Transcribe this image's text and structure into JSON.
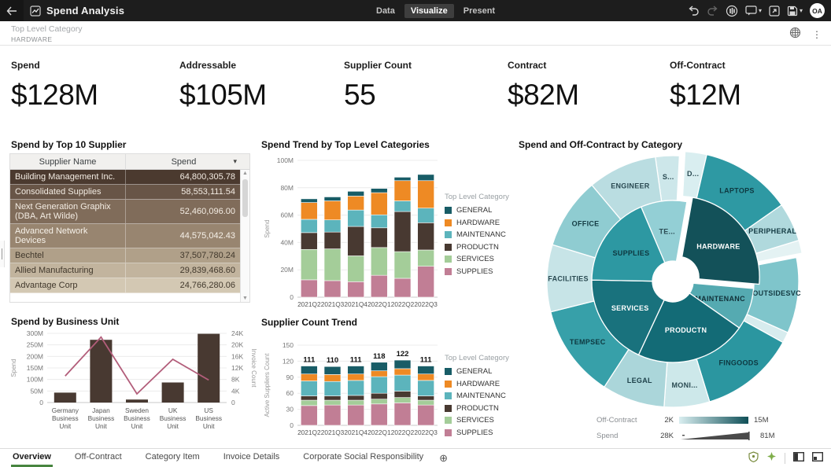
{
  "header": {
    "title": "Spend Analysis",
    "tabs": [
      {
        "label": "Data",
        "active": false
      },
      {
        "label": "Visualize",
        "active": true
      },
      {
        "label": "Present",
        "active": false
      }
    ],
    "avatar": "OA"
  },
  "filter": {
    "label": "Top Level Category",
    "value": "HARDWARE"
  },
  "kpis": [
    {
      "label": "Spend",
      "value": "$128M"
    },
    {
      "label": "Addressable",
      "value": "$105M"
    },
    {
      "label": "Supplier Count",
      "value": "55"
    },
    {
      "label": "Contract",
      "value": "$82M"
    },
    {
      "label": "Off-Contract",
      "value": "$12M"
    }
  ],
  "supplier_table": {
    "title": "Spend by Top 10 Supplier",
    "columns": [
      "Supplier Name",
      "Spend"
    ],
    "rows": [
      {
        "name": "Building Management Inc.",
        "spend": "64,800,305.78",
        "bg": "#4b3a2f",
        "fg": "#f3ece3"
      },
      {
        "name": "Consolidated Supplies",
        "spend": "58,553,111.54",
        "bg": "#685547",
        "fg": "#f3ece3"
      },
      {
        "name": "Next Generation Graphix (DBA, Art Wilde)",
        "spend": "52,460,096.00",
        "bg": "#806c5a",
        "fg": "#f3ece3"
      },
      {
        "name": "Advanced Network Devices",
        "spend": "44,575,042.43",
        "bg": "#988570",
        "fg": "#f6f1e9"
      },
      {
        "name": "Bechtel",
        "spend": "37,507,780.24",
        "bg": "#b0a089",
        "fg": "#41382c"
      },
      {
        "name": "Allied Manufacturing",
        "spend": "29,839,468.60",
        "bg": "#c2b49e",
        "fg": "#41382c"
      },
      {
        "name": "Advantage Corp",
        "spend": "24,766,280.06",
        "bg": "#d3c8b3",
        "fg": "#41382c"
      }
    ]
  },
  "legend_title": "Top Level Category",
  "spend_trend": {
    "title": "Spend Trend by Top Level Categories",
    "chart_data": {
      "type": "bar",
      "stacked": true,
      "categories": [
        "2021Q2",
        "2021Q3",
        "2021Q4",
        "2022Q1",
        "2022Q2",
        "2022Q3"
      ],
      "series": [
        {
          "name": "GENERAL",
          "color": "#185c66",
          "values": [
            2.7,
            2.9,
            3.5,
            3.1,
            2.5,
            4.5
          ]
        },
        {
          "name": "HARDWARE",
          "color": "#ee8a24",
          "values": [
            12.3,
            13.9,
            10.2,
            16.2,
            14.8,
            20.1
          ]
        },
        {
          "name": "MAINTENANC",
          "color": "#5cb4bc",
          "values": [
            9.7,
            8.9,
            12.0,
            9.5,
            7.8,
            10.7
          ]
        },
        {
          "name": "PRODUCTN",
          "color": "#483931",
          "values": [
            12.3,
            12.3,
            21.5,
            14.4,
            29.3,
            19.9
          ]
        },
        {
          "name": "SERVICES",
          "color": "#a4cd99",
          "values": [
            22.2,
            23.2,
            18.9,
            20.3,
            19.5,
            11.9
          ]
        },
        {
          "name": "SUPPLIES",
          "color": "#c17e95",
          "values": [
            12.7,
            12.1,
            11.3,
            16.0,
            13.8,
            22.6
          ]
        }
      ],
      "title": "Spend Trend by Top Level Categories",
      "xlabel": "",
      "ylabel": "Spend",
      "ylim": [
        0,
        100
      ],
      "yticks": [
        "0",
        "20M",
        "40M",
        "60M",
        "80M",
        "100M"
      ],
      "unit": "M",
      "legend_position": "right",
      "grid": true
    }
  },
  "supplier_count": {
    "title": "Supplier Count Trend",
    "chart_data": {
      "type": "bar",
      "stacked": true,
      "categories": [
        "2021Q2",
        "2021Q3",
        "2021Q4",
        "2022Q1",
        "2022Q2",
        "2022Q3"
      ],
      "series": [
        {
          "name": "GENERAL",
          "color": "#185c66",
          "values": [
            15,
            15,
            15,
            16,
            16,
            15
          ]
        },
        {
          "name": "HARDWARE",
          "color": "#ee8a24",
          "values": [
            13,
            13,
            12,
            11,
            12,
            12
          ]
        },
        {
          "name": "MAINTENANC",
          "color": "#5cb4bc",
          "values": [
            28,
            27,
            28,
            31,
            30,
            29
          ]
        },
        {
          "name": "PRODUCTN",
          "color": "#483931",
          "values": [
            8,
            8,
            9,
            11,
            12,
            8
          ]
        },
        {
          "name": "SERVICES",
          "color": "#a4cd99",
          "values": [
            10,
            9,
            9,
            9,
            10,
            9
          ]
        },
        {
          "name": "SUPPLIES",
          "color": "#c17e95",
          "values": [
            37,
            38,
            38,
            40,
            42,
            38
          ]
        }
      ],
      "totals": [
        111,
        110,
        111,
        118,
        122,
        111
      ],
      "title": "Supplier Count Trend",
      "xlabel": "",
      "ylabel": "Active Suppliers Count",
      "ylim": [
        0,
        150
      ],
      "yticks": [
        "0",
        "30",
        "60",
        "90",
        "120",
        "150"
      ],
      "legend_position": "right",
      "grid": true
    }
  },
  "business_unit": {
    "title": "Spend by Business Unit",
    "chart_data": {
      "type": "bar",
      "combo_line": true,
      "categories": [
        "Germany Business Unit",
        "Japan Business Unit",
        "Sweden Business Unit",
        "UK Business Unit",
        "US Business Unit"
      ],
      "series": [
        {
          "name": "Spend",
          "color": "#483931",
          "values": [
            43,
            272,
            13,
            87,
            298
          ],
          "axis": "left"
        },
        {
          "name": "Invoice Count",
          "color": "#b25d7a",
          "values": [
            9.2,
            22.7,
            3.0,
            15.0,
            7.8
          ],
          "axis": "right"
        }
      ],
      "title": "Spend by Business Unit",
      "ylabel": "Spend",
      "y2label": "Invoice Count",
      "ylim": [
        0,
        300
      ],
      "y2lim": [
        0,
        24
      ],
      "yticks": [
        "0",
        "50M",
        "100M",
        "150M",
        "200M",
        "250M",
        "300M"
      ],
      "y2ticks": [
        "0",
        "4K",
        "8K",
        "12K",
        "16K",
        "20K",
        "24K"
      ],
      "grid": true
    }
  },
  "sunburst": {
    "title": "Spend and Off-Contract by Category",
    "chart_data": {
      "type": "pie",
      "subtype": "sunburst",
      "note": "angle = Spend, color shade = Off-Contract",
      "inner": [
        {
          "label": "HARDWARE",
          "a0": 10,
          "a1": 95,
          "color": "#135159",
          "text": "#ffffff",
          "exploded": true
        },
        {
          "label": "MAINTENANC",
          "a0": 95,
          "a1": 125,
          "color": "#55aab1",
          "text": "#113038"
        },
        {
          "label": "PRODUCTN",
          "a0": 125,
          "a1": 205,
          "color": "#136b76",
          "text": "#ffffff"
        },
        {
          "label": "SERVICES",
          "a0": 205,
          "a1": 271,
          "color": "#19727d",
          "text": "#ffffff"
        },
        {
          "label": "SUPPLIES",
          "a0": 271,
          "a1": 337,
          "color": "#2d98a2",
          "text": "#0e3840"
        },
        {
          "label": "TE...",
          "a0": 337,
          "a1": 370,
          "color": "#93cfd5",
          "text": "#2a4a52"
        }
      ],
      "outer": [
        {
          "label": "S...",
          "a0": 352,
          "a1": 363,
          "color": "#cde7ea",
          "text": "#2a4a52"
        },
        {
          "label": "D...",
          "a0": 3,
          "a1": 13,
          "color": "#d9eef0",
          "text": "#2a4a52",
          "exploded": true
        },
        {
          "label": "LAPTOPS",
          "a0": 13,
          "a1": 55,
          "color": "#2e99a3",
          "text": "#0e3840",
          "exploded": true
        },
        {
          "label": "PERIPHERAL",
          "a0": 55,
          "a1": 73,
          "color": "#b0d9dd",
          "text": "#143b43",
          "exploded": true
        },
        {
          "label": "",
          "a0": 73,
          "a1": 79,
          "color": "#e4f2f3",
          "text": "#143b43",
          "exploded": true
        },
        {
          "label": "OUTSIDESVC",
          "a0": 79,
          "a1": 114,
          "color": "#7fc5cb",
          "text": "#143b43"
        },
        {
          "label": "",
          "a0": 114,
          "a1": 119,
          "color": "#d7ecee",
          "text": "#143b43"
        },
        {
          "label": "FINGOODS",
          "a0": 119,
          "a1": 163,
          "color": "#2b96a0",
          "text": "#0e3840"
        },
        {
          "label": "MONI...",
          "a0": 163,
          "a1": 184,
          "color": "#cde8ea",
          "text": "#2a4a52"
        },
        {
          "label": "LEGAL",
          "a0": 184,
          "a1": 213,
          "color": "#abd6da",
          "text": "#1d4049"
        },
        {
          "label": "TEMPSEC",
          "a0": 213,
          "a1": 256,
          "color": "#37a0a9",
          "text": "#0e3840"
        },
        {
          "label": "FACILITIES",
          "a0": 256,
          "a1": 287,
          "color": "#c7e4e7",
          "text": "#2a4a52"
        },
        {
          "label": "OFFICE",
          "a0": 287,
          "a1": 320,
          "color": "#8fccd1",
          "text": "#143b43"
        },
        {
          "label": "ENGINEER",
          "a0": 320,
          "a1": 352,
          "color": "#badde1",
          "text": "#2a4a52"
        }
      ]
    },
    "legend": {
      "off_contract_label": "Off-Contract",
      "off_min": "2K",
      "off_max": "15M",
      "gradient_from": "#d9eef0",
      "gradient_to": "#0f4f57",
      "spend_label": "Spend",
      "spend_min": "28K",
      "spend_max": "81M",
      "wedge_color": "#4a4a4a"
    }
  },
  "bottom": {
    "tabs": [
      {
        "label": "Overview",
        "active": true
      },
      {
        "label": "Off-Contract",
        "active": false
      },
      {
        "label": "Category Item",
        "active": false
      },
      {
        "label": "Invoice Details",
        "active": false
      },
      {
        "label": "Corporate Social Responsibility",
        "active": false
      }
    ],
    "accent_green": "#47853f"
  }
}
